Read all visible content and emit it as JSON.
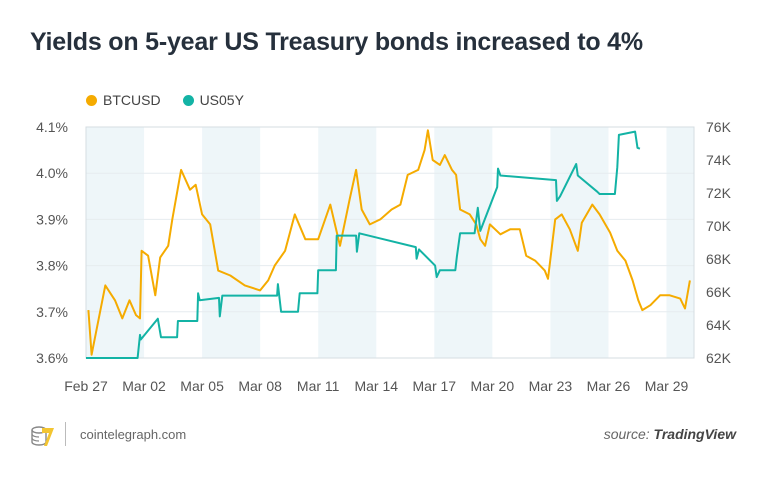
{
  "title": "Yields on 5-year US Treasury bonds increased to 4%",
  "footer": {
    "site": "cointelegraph.com",
    "source_prefix": "source:",
    "source_name": "TradingView",
    "logo_icon": "cointelegraph-logo-icon"
  },
  "colors": {
    "BTCUSD": "#f5ab00",
    "US05Y": "#13b3a5",
    "band": "#eef6f9"
  },
  "chart_data": {
    "type": "line",
    "title": "Yields on 5-year US Treasury bonds increased to 4%",
    "legend_position": "top-left",
    "grid": true,
    "x_ticks": [
      "Feb 27",
      "Mar 02",
      "Mar 05",
      "Mar 08",
      "Mar 11",
      "Mar 14",
      "Mar 17",
      "Mar 20",
      "Mar 23",
      "Mar 26",
      "Mar 29"
    ],
    "xlim": [
      "Feb 27 00:00",
      "Mar 30 10:00"
    ],
    "y_left": {
      "series": "US05Y",
      "ticks": [
        "3.6%",
        "3.7%",
        "3.8%",
        "3.9%",
        "4.0%",
        "4.1%"
      ],
      "ylim": [
        3.6,
        4.1
      ]
    },
    "y_right": {
      "series": "BTCUSD",
      "ticks": [
        "62K",
        "64K",
        "66K",
        "68K",
        "70K",
        "72K",
        "74K",
        "76K"
      ],
      "ylim": [
        62,
        76
      ]
    },
    "series": [
      {
        "name": "BTCUSD",
        "axis": "right",
        "unit": "K",
        "points": [
          [
            "Feb 27 03:00",
            64.9
          ],
          [
            "Feb 27 07:00",
            62.2
          ],
          [
            "Feb 28 00:00",
            66.4
          ],
          [
            "Feb 28 12:00",
            65.5
          ],
          [
            "Feb 28 21:00",
            64.4
          ],
          [
            "Mar 01 06:00",
            65.5
          ],
          [
            "Mar 01 14:00",
            64.6
          ],
          [
            "Mar 01 19:00",
            64.4
          ],
          [
            "Mar 01 21:00",
            68.5
          ],
          [
            "Mar 02 05:00",
            68.2
          ],
          [
            "Mar 02 14:00",
            65.8
          ],
          [
            "Mar 02 20:00",
            68.1
          ],
          [
            "Mar 03 06:00",
            68.8
          ],
          [
            "Mar 03 11:00",
            70.4
          ],
          [
            "Mar 03 22:00",
            73.4
          ],
          [
            "Mar 04 09:00",
            72.2
          ],
          [
            "Mar 04 16:00",
            72.5
          ],
          [
            "Mar 05 00:00",
            70.7
          ],
          [
            "Mar 05 10:00",
            70.1
          ],
          [
            "Mar 05 20:00",
            67.3
          ],
          [
            "Mar 06 11:00",
            67.0
          ],
          [
            "Mar 07 05:00",
            66.4
          ],
          [
            "Mar 08 00:00",
            66.1
          ],
          [
            "Mar 08 10:00",
            66.7
          ],
          [
            "Mar 08 18:00",
            67.6
          ],
          [
            "Mar 09 07:00",
            68.5
          ],
          [
            "Mar 09 19:00",
            70.7
          ],
          [
            "Mar 10 08:00",
            69.2
          ],
          [
            "Mar 11 00:00",
            69.2
          ],
          [
            "Mar 11 15:00",
            71.3
          ],
          [
            "Mar 12 03:00",
            68.8
          ],
          [
            "Mar 12 15:00",
            71.6
          ],
          [
            "Mar 12 23:00",
            73.4
          ],
          [
            "Mar 13 06:00",
            71.0
          ],
          [
            "Mar 13 16:00",
            70.1
          ],
          [
            "Mar 14 05:00",
            70.4
          ],
          [
            "Mar 14 19:00",
            71.0
          ],
          [
            "Mar 15 06:00",
            71.3
          ],
          [
            "Mar 15 15:00",
            73.1
          ],
          [
            "Mar 16 04:00",
            73.4
          ],
          [
            "Mar 16 12:00",
            74.6
          ],
          [
            "Mar 16 16:00",
            75.8
          ],
          [
            "Mar 16 22:00",
            74.0
          ],
          [
            "Mar 17 07:00",
            73.7
          ],
          [
            "Mar 17 13:00",
            74.3
          ],
          [
            "Mar 17 22:00",
            73.4
          ],
          [
            "Mar 18 03:00",
            73.1
          ],
          [
            "Mar 18 08:00",
            71.0
          ],
          [
            "Mar 18 20:00",
            70.7
          ],
          [
            "Mar 19 04:00",
            70.1
          ],
          [
            "Mar 19 09:00",
            69.2
          ],
          [
            "Mar 19 15:00",
            68.8
          ],
          [
            "Mar 19 21:00",
            70.1
          ],
          [
            "Mar 20 10:00",
            69.5
          ],
          [
            "Mar 20 22:00",
            69.8
          ],
          [
            "Mar 21 10:00",
            69.8
          ],
          [
            "Mar 21 18:00",
            68.2
          ],
          [
            "Mar 22 05:00",
            67.9
          ],
          [
            "Mar 22 17:00",
            67.3
          ],
          [
            "Mar 22 21:00",
            66.8
          ],
          [
            "Mar 23 06:00",
            70.4
          ],
          [
            "Mar 23 14:00",
            70.7
          ],
          [
            "Mar 24 00:00",
            69.8
          ],
          [
            "Mar 24 10:00",
            68.5
          ],
          [
            "Mar 24 15:00",
            70.2
          ],
          [
            "Mar 25 04:00",
            71.3
          ],
          [
            "Mar 25 13:00",
            70.7
          ],
          [
            "Mar 26 02:00",
            69.6
          ],
          [
            "Mar 26 11:00",
            68.5
          ],
          [
            "Mar 26 21:00",
            67.9
          ],
          [
            "Mar 27 06:00",
            66.7
          ],
          [
            "Mar 27 13:00",
            65.5
          ],
          [
            "Mar 27 18:00",
            64.9
          ],
          [
            "Mar 28 04:00",
            65.2
          ],
          [
            "Mar 28 16:00",
            65.8
          ],
          [
            "Mar 29 04:00",
            65.8
          ],
          [
            "Mar 29 17:00",
            65.6
          ],
          [
            "Mar 29 23:00",
            65.0
          ],
          [
            "Mar 30 05:00",
            66.7
          ]
        ]
      },
      {
        "name": "US05Y",
        "axis": "left",
        "unit": "%",
        "points": [
          [
            "Feb 27 00:00",
            3.6
          ],
          [
            "Mar 01 16:00",
            3.6
          ],
          [
            "Mar 01 19:00",
            3.65
          ],
          [
            "Mar 01 20:00",
            3.64
          ],
          [
            "Mar 02 17:00",
            3.685
          ],
          [
            "Mar 02 21:00",
            3.645
          ],
          [
            "Mar 03 17:00",
            3.645
          ],
          [
            "Mar 03 18:00",
            3.68
          ],
          [
            "Mar 04 18:00",
            3.68
          ],
          [
            "Mar 04 19:00",
            3.74
          ],
          [
            "Mar 04 21:00",
            3.725
          ],
          [
            "Mar 05 21:00",
            3.73
          ],
          [
            "Mar 05 22:00",
            3.69
          ],
          [
            "Mar 06 01:00",
            3.735
          ],
          [
            "Mar 08 21:00",
            3.735
          ],
          [
            "Mar 08 22:00",
            3.76
          ],
          [
            "Mar 09 02:00",
            3.7
          ],
          [
            "Mar 09 23:00",
            3.7
          ],
          [
            "Mar 10 01:00",
            3.74
          ],
          [
            "Mar 10 23:00",
            3.74
          ],
          [
            "Mar 11 00:00",
            3.79
          ],
          [
            "Mar 11 22:00",
            3.79
          ],
          [
            "Mar 11 23:00",
            3.865
          ],
          [
            "Mar 12 23:00",
            3.865
          ],
          [
            "Mar 13 00:00",
            3.83
          ],
          [
            "Mar 13 03:00",
            3.87
          ],
          [
            "Mar 16 01:00",
            3.84
          ],
          [
            "Mar 16 02:00",
            3.815
          ],
          [
            "Mar 16 05:00",
            3.835
          ],
          [
            "Mar 17 01:00",
            3.8
          ],
          [
            "Mar 17 03:00",
            3.775
          ],
          [
            "Mar 17 07:00",
            3.79
          ],
          [
            "Mar 18 02:00",
            3.79
          ],
          [
            "Mar 18 04:00",
            3.82
          ],
          [
            "Mar 18 08:00",
            3.87
          ],
          [
            "Mar 19 02:00",
            3.87
          ],
          [
            "Mar 19 06:00",
            3.925
          ],
          [
            "Mar 19 09:00",
            3.875
          ],
          [
            "Mar 20 06:00",
            3.97
          ],
          [
            "Mar 20 07:00",
            4.01
          ],
          [
            "Mar 20 10:00",
            3.995
          ],
          [
            "Mar 23 07:00",
            3.985
          ],
          [
            "Mar 23 08:00",
            3.94
          ],
          [
            "Mar 23 12:00",
            3.95
          ],
          [
            "Mar 24 08:00",
            4.02
          ],
          [
            "Mar 24 10:00",
            3.995
          ],
          [
            "Mar 25 10:00",
            3.96
          ],
          [
            "Mar 25 13:00",
            3.955
          ],
          [
            "Mar 26 08:00",
            3.955
          ],
          [
            "Mar 26 11:00",
            4.013
          ],
          [
            "Mar 26 13:00",
            4.083
          ],
          [
            "Mar 27 09:00",
            4.09
          ],
          [
            "Mar 27 12:00",
            4.055
          ],
          [
            "Mar 27 15:00",
            4.053
          ]
        ]
      }
    ]
  }
}
